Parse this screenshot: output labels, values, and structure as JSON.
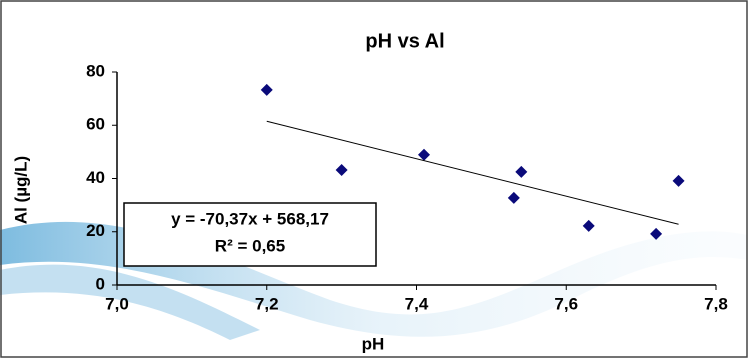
{
  "chart_data": {
    "type": "scatter",
    "title": "pH vs Al",
    "x_label": "pH",
    "y_label": "Al (µg/L)",
    "series": [
      {
        "name": "Al",
        "color": "#0a0a7a",
        "x": [
          7.2,
          7.3,
          7.41,
          7.53,
          7.54,
          7.63,
          7.72,
          7.75
        ],
        "values": [
          73.3,
          43.2,
          48.9,
          32.7,
          42.5,
          22.2,
          19.2,
          39.1
        ]
      }
    ],
    "trendline": {
      "equation": "y = -70,37x + 568,17",
      "r2": "R² = 0,65",
      "slope": -70.37,
      "intercept": 568.17,
      "color": "#000000"
    },
    "xlim": [
      7.0,
      7.8
    ],
    "xticks": [
      {
        "value": 7.0,
        "label": "7,0"
      },
      {
        "value": 7.2,
        "label": "7,2"
      },
      {
        "value": 7.4,
        "label": "7,4"
      },
      {
        "value": 7.6,
        "label": "7,6"
      },
      {
        "value": 7.8,
        "label": "7,8"
      }
    ],
    "ylim": [
      0,
      80
    ],
    "yticks": [
      0,
      20,
      40,
      60,
      80
    ]
  }
}
